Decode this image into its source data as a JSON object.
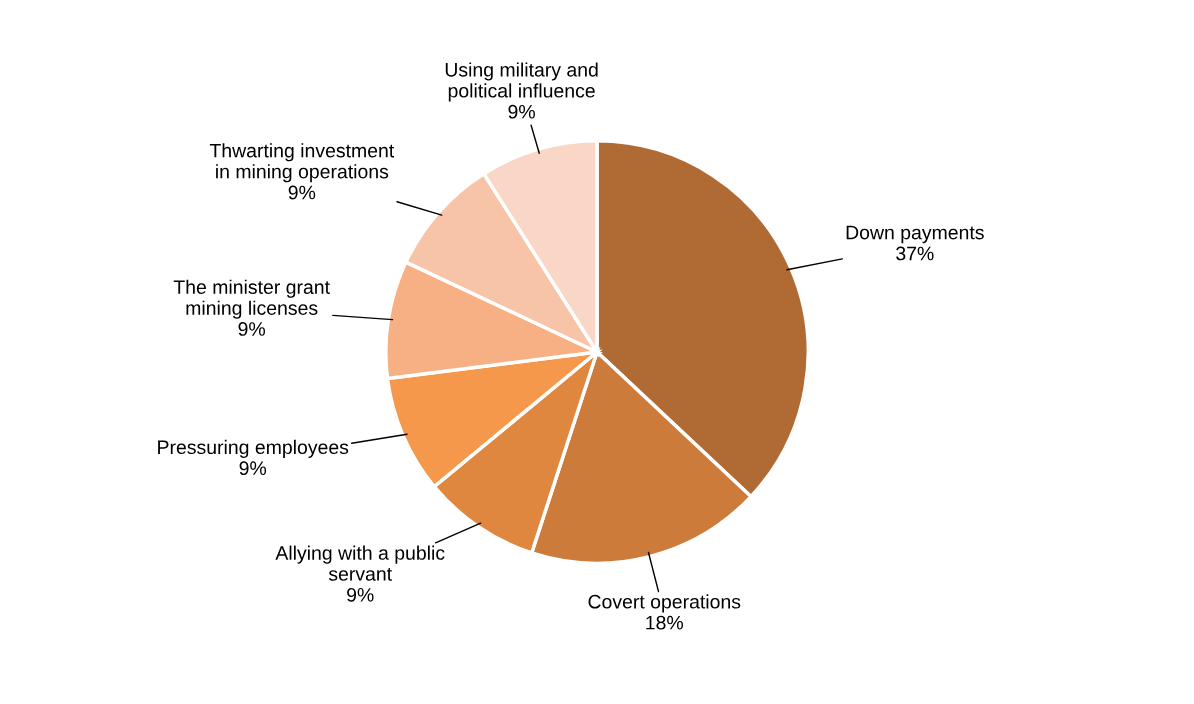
{
  "chart_data": {
    "type": "pie",
    "categories": [
      "Down payments",
      "Covert operations",
      "Allying with a public servant",
      "Pressuring employees",
      "The minister grant mining licenses",
      "Thwarting investment in mining operations",
      "Using military and political influence"
    ],
    "values": [
      37,
      18,
      9,
      9,
      9,
      9,
      9
    ],
    "value_labels": [
      "37%",
      "18%",
      "9%",
      "9%",
      "9%",
      "9%",
      "9%"
    ],
    "colors": [
      "#b06a33",
      "#cd7b3a",
      "#e0873f",
      "#f5984b",
      "#f6b083",
      "#f8c4a8",
      "#f9d6c6"
    ],
    "legend": false
  }
}
